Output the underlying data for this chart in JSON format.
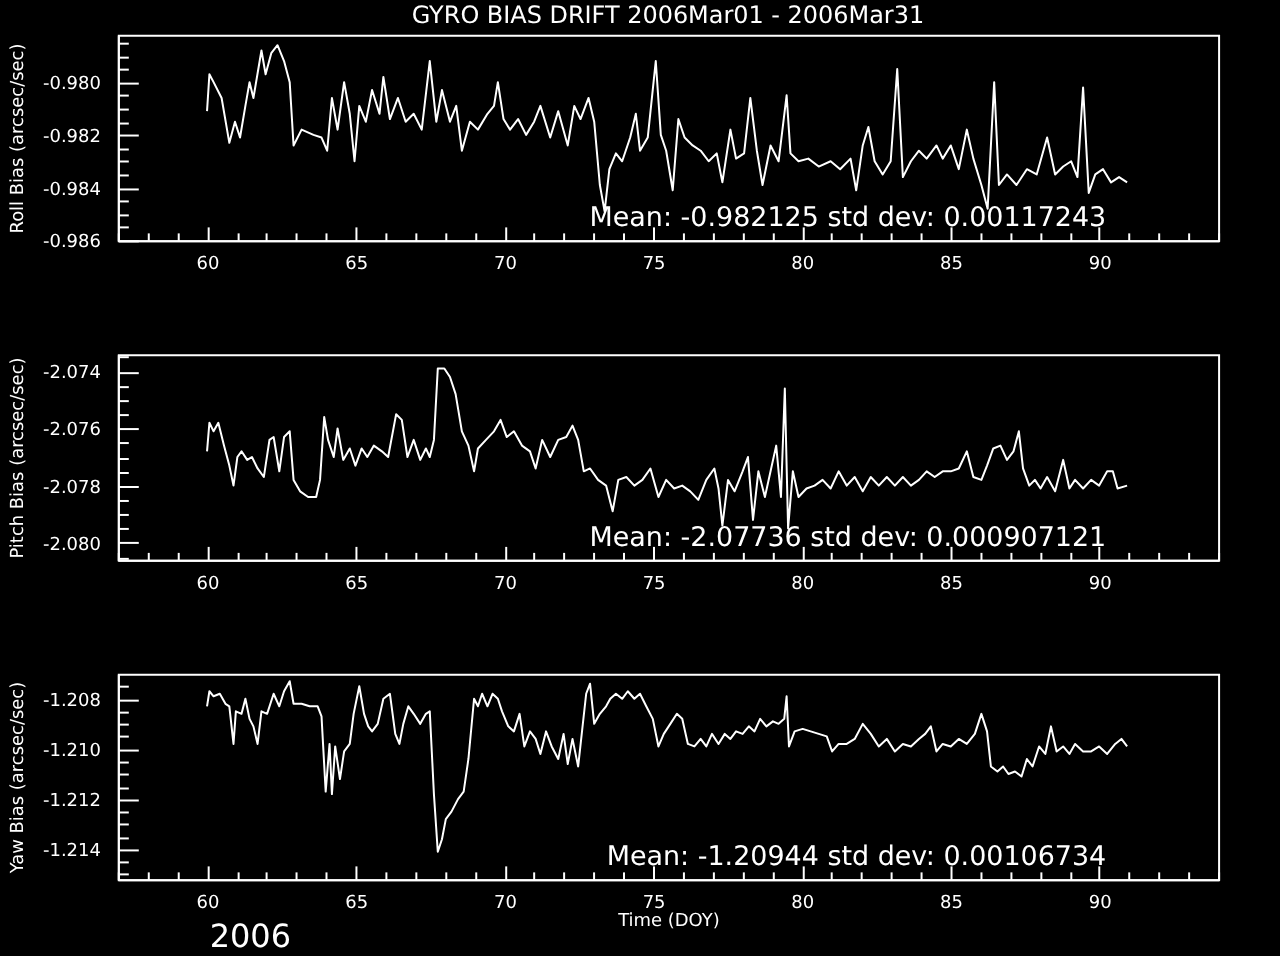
{
  "chart_data": [
    {
      "type": "line",
      "title": "GYRO BIAS DRIFT 2006Mar01 - 2006Mar31",
      "ylabel": "Roll Bias (arcsec/sec)",
      "annotations": [
        "Mean: -0.982125 std dev: 0.00117243"
      ],
      "xlim": [
        57,
        94
      ],
      "ylim": [
        -0.986,
        -0.9782
      ],
      "xticks": [
        {
          "value": 57,
          "label": null
        },
        {
          "value": 58,
          "label": null
        },
        {
          "value": 59,
          "label": null
        },
        60,
        {
          "value": 61,
          "label": null
        },
        {
          "value": 62,
          "label": null
        },
        {
          "value": 63,
          "label": null
        },
        {
          "value": 64,
          "label": null
        },
        65,
        {
          "value": 66,
          "label": null
        },
        {
          "value": 67,
          "label": null
        },
        {
          "value": 68,
          "label": null
        },
        {
          "value": 69,
          "label": null
        },
        70,
        {
          "value": 71,
          "label": null
        },
        {
          "value": 72,
          "label": null
        },
        {
          "value": 73,
          "label": null
        },
        {
          "value": 74,
          "label": null
        },
        75,
        {
          "value": 76,
          "label": null
        },
        {
          "value": 77,
          "label": null
        },
        {
          "value": 78,
          "label": null
        },
        {
          "value": 79,
          "label": null
        },
        80,
        {
          "value": 81,
          "label": null
        },
        {
          "value": 82,
          "label": null
        },
        {
          "value": 83,
          "label": null
        },
        {
          "value": 84,
          "label": null
        },
        85,
        {
          "value": 86,
          "label": null
        },
        {
          "value": 87,
          "label": null
        },
        {
          "value": 88,
          "label": null
        },
        {
          "value": 89,
          "label": null
        },
        90,
        {
          "value": 91,
          "label": null
        },
        {
          "value": 92,
          "label": null
        },
        {
          "value": 93,
          "label": null
        },
        {
          "value": 94,
          "label": null
        }
      ],
      "yticks": [
        {
          "value": -0.986,
          "label": "-0.986"
        },
        {
          "value": -0.9855,
          "label": null
        },
        {
          "value": -0.985,
          "label": null
        },
        {
          "value": -0.9845,
          "label": null
        },
        {
          "value": -0.984,
          "label": "-0.984"
        },
        {
          "value": -0.9835,
          "label": null
        },
        {
          "value": -0.983,
          "label": null
        },
        {
          "value": -0.9825,
          "label": null
        },
        {
          "value": -0.982,
          "label": "-0.982"
        },
        {
          "value": -0.9815,
          "label": null
        },
        {
          "value": -0.981,
          "label": null
        },
        {
          "value": -0.9805,
          "label": null
        },
        {
          "value": -0.98,
          "label": "-0.980"
        },
        {
          "value": -0.9795,
          "label": null
        },
        {
          "value": -0.979,
          "label": null
        },
        {
          "value": -0.9785,
          "label": null
        }
      ],
      "series": [
        {
          "color": "#ffffff",
          "x": [
            60.0,
            60.08,
            60.22,
            60.49,
            60.75,
            60.94,
            61.11,
            61.29,
            61.43,
            61.56,
            61.83,
            61.97,
            62.16,
            62.37,
            62.59,
            62.78,
            62.91,
            63.18,
            63.58,
            63.85,
            64.04,
            64.2,
            64.39,
            64.61,
            64.8,
            64.96,
            65.12,
            65.34,
            65.55,
            65.8,
            65.93,
            66.15,
            66.42,
            66.68,
            66.95,
            67.22,
            67.49,
            67.71,
            67.9,
            68.17,
            68.38,
            68.57,
            68.84,
            69.11,
            69.43,
            69.65,
            69.78,
            69.97,
            70.19,
            70.46,
            70.73,
            71.0,
            71.21,
            71.54,
            71.81,
            72.13,
            72.35,
            72.56,
            72.83,
            73.02,
            73.21,
            73.37,
            73.53,
            73.75,
            73.96,
            74.23,
            74.42,
            74.56,
            74.82,
            75.09,
            75.26,
            75.44,
            75.66,
            75.85,
            76.06,
            76.33,
            76.6,
            76.87,
            77.14,
            77.33,
            77.6,
            77.79,
            78.06,
            78.27,
            78.49,
            78.68,
            78.95,
            79.22,
            79.49,
            79.62,
            79.89,
            80.22,
            80.57,
            80.97,
            81.29,
            81.64,
            81.83,
            82.05,
            82.24,
            82.45,
            82.72,
            82.99,
            83.21,
            83.4,
            83.67,
            83.94,
            84.2,
            84.53,
            84.74,
            85.01,
            85.28,
            85.55,
            85.77,
            86.04,
            86.25,
            86.47,
            86.63,
            86.9,
            87.22,
            87.57,
            87.9,
            88.25,
            88.52,
            88.79,
            89.06,
            89.27,
            89.46,
            89.65,
            89.87,
            90.13,
            90.4,
            90.67,
            90.94
          ],
          "values": [
            -0.9811,
            -0.9797,
            -0.98,
            -0.9806,
            -0.9823,
            -0.9815,
            -0.9821,
            -0.9809,
            -0.98,
            -0.9806,
            -0.9788,
            -0.9797,
            -0.9789,
            -0.9786,
            -0.9792,
            -0.98,
            -0.9824,
            -0.9818,
            -0.982,
            -0.9821,
            -0.9826,
            -0.9806,
            -0.9818,
            -0.98,
            -0.9812,
            -0.983,
            -0.9809,
            -0.9815,
            -0.9803,
            -0.9812,
            -0.9798,
            -0.9814,
            -0.9806,
            -0.9815,
            -0.9812,
            -0.9818,
            -0.9792,
            -0.9815,
            -0.9803,
            -0.9815,
            -0.9809,
            -0.9826,
            -0.9815,
            -0.9818,
            -0.9812,
            -0.9809,
            -0.98,
            -0.9814,
            -0.9818,
            -0.9814,
            -0.982,
            -0.9815,
            -0.9809,
            -0.9821,
            -0.9811,
            -0.9824,
            -0.9809,
            -0.9814,
            -0.9806,
            -0.9815,
            -0.9839,
            -0.9849,
            -0.9833,
            -0.9827,
            -0.983,
            -0.9821,
            -0.9812,
            -0.9826,
            -0.9821,
            -0.9792,
            -0.982,
            -0.9826,
            -0.9841,
            -0.9814,
            -0.9821,
            -0.9824,
            -0.9826,
            -0.983,
            -0.9827,
            -0.9838,
            -0.9818,
            -0.9829,
            -0.9827,
            -0.9806,
            -0.9826,
            -0.9839,
            -0.9824,
            -0.983,
            -0.9805,
            -0.9827,
            -0.983,
            -0.9829,
            -0.9832,
            -0.983,
            -0.9833,
            -0.9829,
            -0.9841,
            -0.9824,
            -0.9817,
            -0.983,
            -0.9835,
            -0.983,
            -0.9795,
            -0.9836,
            -0.983,
            -0.9826,
            -0.9829,
            -0.9824,
            -0.9829,
            -0.9824,
            -0.9833,
            -0.9818,
            -0.9829,
            -0.9839,
            -0.9848,
            -0.98,
            -0.9839,
            -0.9835,
            -0.9839,
            -0.9833,
            -0.9835,
            -0.9821,
            -0.9835,
            -0.9832,
            -0.983,
            -0.9836,
            -0.9802,
            -0.9842,
            -0.9835,
            -0.9833,
            -0.9838,
            -0.9836,
            -0.9838
          ]
        }
      ]
    },
    {
      "type": "line",
      "ylabel": "Pitch Bias (arcsec/sec)",
      "annotations": [
        "Mean: -2.07736 std dev: 0.000907121"
      ],
      "xlim": [
        57,
        94
      ],
      "ylim": [
        -2.0806,
        -2.0734
      ],
      "xticks": [
        {
          "value": 57,
          "label": null
        },
        {
          "value": 58,
          "label": null
        },
        {
          "value": 59,
          "label": null
        },
        60,
        {
          "value": 61,
          "label": null
        },
        {
          "value": 62,
          "label": null
        },
        {
          "value": 63,
          "label": null
        },
        {
          "value": 64,
          "label": null
        },
        65,
        {
          "value": 66,
          "label": null
        },
        {
          "value": 67,
          "label": null
        },
        {
          "value": 68,
          "label": null
        },
        {
          "value": 69,
          "label": null
        },
        70,
        {
          "value": 71,
          "label": null
        },
        {
          "value": 72,
          "label": null
        },
        {
          "value": 73,
          "label": null
        },
        {
          "value": 74,
          "label": null
        },
        75,
        {
          "value": 76,
          "label": null
        },
        {
          "value": 77,
          "label": null
        },
        {
          "value": 78,
          "label": null
        },
        {
          "value": 79,
          "label": null
        },
        80,
        {
          "value": 81,
          "label": null
        },
        {
          "value": 82,
          "label": null
        },
        {
          "value": 83,
          "label": null
        },
        {
          "value": 84,
          "label": null
        },
        85,
        {
          "value": 86,
          "label": null
        },
        {
          "value": 87,
          "label": null
        },
        {
          "value": 88,
          "label": null
        },
        {
          "value": 89,
          "label": null
        },
        90,
        {
          "value": 91,
          "label": null
        },
        {
          "value": 92,
          "label": null
        },
        {
          "value": 93,
          "label": null
        },
        {
          "value": 94,
          "label": null
        }
      ],
      "yticks": [
        {
          "value": -2.0805,
          "label": null
        },
        {
          "value": -2.08,
          "label": "-2.080"
        },
        {
          "value": -2.0795,
          "label": null
        },
        {
          "value": -2.079,
          "label": null
        },
        {
          "value": -2.0785,
          "label": null
        },
        {
          "value": -2.078,
          "label": "-2.078"
        },
        {
          "value": -2.0775,
          "label": null
        },
        {
          "value": -2.077,
          "label": null
        },
        {
          "value": -2.0765,
          "label": null
        },
        {
          "value": -2.076,
          "label": "-2.076"
        },
        {
          "value": -2.0755,
          "label": null
        },
        {
          "value": -2.075,
          "label": null
        },
        {
          "value": -2.0745,
          "label": null
        },
        {
          "value": -2.074,
          "label": "-2.074"
        },
        {
          "value": -2.0735,
          "label": null
        }
      ],
      "series": [
        {
          "color": "#ffffff",
          "x": [
            60.0,
            60.08,
            60.22,
            60.38,
            60.57,
            60.75,
            60.89,
            61.02,
            61.16,
            61.35,
            61.51,
            61.7,
            61.91,
            62.1,
            62.24,
            62.43,
            62.59,
            62.78,
            62.91,
            63.13,
            63.4,
            63.67,
            63.8,
            63.94,
            64.07,
            64.26,
            64.39,
            64.58,
            64.8,
            64.99,
            65.2,
            65.39,
            65.61,
            65.88,
            66.09,
            66.36,
            66.55,
            66.74,
            66.95,
            67.17,
            67.36,
            67.49,
            67.63,
            67.76,
            67.98,
            68.17,
            68.36,
            68.57,
            68.79,
            68.98,
            69.11,
            69.38,
            69.65,
            69.87,
            70.08,
            70.32,
            70.59,
            70.86,
            71.05,
            71.27,
            71.54,
            71.81,
            72.08,
            72.29,
            72.48,
            72.67,
            72.88,
            73.15,
            73.42,
            73.64,
            73.83,
            74.1,
            74.37,
            74.64,
            74.91,
            75.18,
            75.44,
            75.71,
            75.98,
            76.25,
            76.52,
            76.79,
            77.06,
            77.2,
            77.33,
            77.52,
            77.74,
            78.01,
            78.19,
            78.36,
            78.54,
            78.76,
            78.95,
            79.14,
            79.3,
            79.43,
            79.54,
            79.7,
            79.89,
            80.16,
            80.43,
            80.7,
            80.97,
            81.24,
            81.51,
            81.78,
            82.05,
            82.32,
            82.59,
            82.86,
            83.13,
            83.4,
            83.67,
            83.94,
            84.2,
            84.47,
            84.74,
            85.01,
            85.28,
            85.55,
            85.77,
            86.04,
            86.23,
            86.44,
            86.68,
            86.9,
            87.12,
            87.3,
            87.44,
            87.65,
            87.84,
            88.03,
            88.25,
            88.52,
            88.79,
            89.0,
            89.19,
            89.46,
            89.73,
            90.0,
            90.27,
            90.46,
            90.62,
            90.94
          ],
          "values": [
            -2.0768,
            -2.0758,
            -2.0761,
            -2.0758,
            -2.0766,
            -2.0773,
            -2.078,
            -2.077,
            -2.0768,
            -2.0771,
            -2.077,
            -2.0774,
            -2.0777,
            -2.0764,
            -2.0763,
            -2.0775,
            -2.0763,
            -2.0761,
            -2.0778,
            -2.0782,
            -2.0784,
            -2.0784,
            -2.0778,
            -2.0756,
            -2.0764,
            -2.077,
            -2.076,
            -2.0771,
            -2.0767,
            -2.0773,
            -2.0767,
            -2.077,
            -2.0766,
            -2.0768,
            -2.077,
            -2.0755,
            -2.0757,
            -2.077,
            -2.0764,
            -2.0771,
            -2.0767,
            -2.077,
            -2.0764,
            -2.0739,
            -2.0739,
            -2.0742,
            -2.0748,
            -2.0761,
            -2.0766,
            -2.0775,
            -2.0767,
            -2.0764,
            -2.0761,
            -2.0757,
            -2.0763,
            -2.0761,
            -2.0766,
            -2.0768,
            -2.0774,
            -2.0764,
            -2.077,
            -2.0764,
            -2.0763,
            -2.0759,
            -2.0764,
            -2.0775,
            -2.0774,
            -2.0778,
            -2.078,
            -2.0789,
            -2.0778,
            -2.0777,
            -2.078,
            -2.0778,
            -2.0774,
            -2.0784,
            -2.0778,
            -2.0781,
            -2.078,
            -2.0782,
            -2.0785,
            -2.0778,
            -2.0774,
            -2.0781,
            -2.0794,
            -2.0778,
            -2.0782,
            -2.0775,
            -2.077,
            -2.0792,
            -2.0775,
            -2.0784,
            -2.0775,
            -2.0766,
            -2.0784,
            -2.0746,
            -2.0795,
            -2.0775,
            -2.0784,
            -2.0781,
            -2.078,
            -2.0778,
            -2.0781,
            -2.0775,
            -2.078,
            -2.0777,
            -2.0782,
            -2.0777,
            -2.078,
            -2.0777,
            -2.078,
            -2.0777,
            -2.078,
            -2.0778,
            -2.0775,
            -2.0777,
            -2.0775,
            -2.0775,
            -2.0774,
            -2.0768,
            -2.0777,
            -2.0778,
            -2.0773,
            -2.0767,
            -2.0766,
            -2.0771,
            -2.0768,
            -2.0761,
            -2.0774,
            -2.078,
            -2.0778,
            -2.0781,
            -2.0777,
            -2.0782,
            -2.0771,
            -2.0781,
            -2.0778,
            -2.0781,
            -2.0778,
            -2.078,
            -2.0775,
            -2.0775,
            -2.0781,
            -2.078
          ]
        }
      ]
    },
    {
      "type": "line",
      "xlabel": "Time (DOY)",
      "ylabel": "Yaw Bias (arcsec/sec)",
      "annotations": [
        "Mean: -1.20944 std dev: 0.00106734",
        "2006"
      ],
      "xlim": [
        57,
        94
      ],
      "ylim": [
        -1.2152,
        -1.207
      ],
      "xticks": [
        {
          "value": 57,
          "label": null
        },
        {
          "value": 58,
          "label": null
        },
        {
          "value": 59,
          "label": null
        },
        60,
        {
          "value": 61,
          "label": null
        },
        {
          "value": 62,
          "label": null
        },
        {
          "value": 63,
          "label": null
        },
        {
          "value": 64,
          "label": null
        },
        65,
        {
          "value": 66,
          "label": null
        },
        {
          "value": 67,
          "label": null
        },
        {
          "value": 68,
          "label": null
        },
        {
          "value": 69,
          "label": null
        },
        70,
        {
          "value": 71,
          "label": null
        },
        {
          "value": 72,
          "label": null
        },
        {
          "value": 73,
          "label": null
        },
        {
          "value": 74,
          "label": null
        },
        75,
        {
          "value": 76,
          "label": null
        },
        {
          "value": 77,
          "label": null
        },
        {
          "value": 78,
          "label": null
        },
        {
          "value": 79,
          "label": null
        },
        80,
        {
          "value": 81,
          "label": null
        },
        {
          "value": 82,
          "label": null
        },
        {
          "value": 83,
          "label": null
        },
        {
          "value": 84,
          "label": null
        },
        85,
        {
          "value": 86,
          "label": null
        },
        {
          "value": 87,
          "label": null
        },
        {
          "value": 88,
          "label": null
        },
        {
          "value": 89,
          "label": null
        },
        90,
        {
          "value": 91,
          "label": null
        },
        {
          "value": 92,
          "label": null
        },
        {
          "value": 93,
          "label": null
        },
        {
          "value": 94,
          "label": null
        }
      ],
      "yticks": [
        {
          "value": -1.215,
          "label": null
        },
        {
          "value": -1.2145,
          "label": null
        },
        {
          "value": -1.214,
          "label": "-1.214"
        },
        {
          "value": -1.2135,
          "label": null
        },
        {
          "value": -1.213,
          "label": null
        },
        {
          "value": -1.2125,
          "label": null
        },
        {
          "value": -1.212,
          "label": "-1.212"
        },
        {
          "value": -1.2115,
          "label": null
        },
        {
          "value": -1.211,
          "label": null
        },
        {
          "value": -1.2105,
          "label": null
        },
        {
          "value": -1.21,
          "label": "-1.210"
        },
        {
          "value": -1.2095,
          "label": null
        },
        {
          "value": -1.209,
          "label": null
        },
        {
          "value": -1.2085,
          "label": null
        },
        {
          "value": -1.208,
          "label": "-1.208"
        },
        {
          "value": -1.2075,
          "label": null
        }
      ],
      "series": [
        {
          "color": "#ffffff",
          "x": [
            60.0,
            60.08,
            60.22,
            60.43,
            60.62,
            60.75,
            60.89,
            60.97,
            61.16,
            61.29,
            61.43,
            61.56,
            61.7,
            61.83,
            62.02,
            62.24,
            62.43,
            62.59,
            62.78,
            62.91,
            63.18,
            63.45,
            63.72,
            63.85,
            63.99,
            64.12,
            64.2,
            64.31,
            64.47,
            64.61,
            64.8,
            64.93,
            65.12,
            65.28,
            65.42,
            65.55,
            65.74,
            65.93,
            66.15,
            66.33,
            66.47,
            66.6,
            66.77,
            66.95,
            67.17,
            67.36,
            67.49,
            67.63,
            67.76,
            67.9,
            68.03,
            68.22,
            68.44,
            68.63,
            68.79,
            68.98,
            69.11,
            69.25,
            69.43,
            69.6,
            69.78,
            69.92,
            70.13,
            70.32,
            70.51,
            70.67,
            70.86,
            71.05,
            71.21,
            71.4,
            71.59,
            71.81,
            71.99,
            72.13,
            72.29,
            72.48,
            72.61,
            72.75,
            72.88,
            73.02,
            73.21,
            73.42,
            73.56,
            73.75,
            73.96,
            74.15,
            74.37,
            74.56,
            74.77,
            74.99,
            75.18,
            75.36,
            75.58,
            75.8,
            75.98,
            76.17,
            76.39,
            76.6,
            76.79,
            76.98,
            77.2,
            77.41,
            77.6,
            77.79,
            78.01,
            78.22,
            78.41,
            78.6,
            78.81,
            79.03,
            79.22,
            79.41,
            79.49,
            79.57,
            79.76,
            80.03,
            80.3,
            80.57,
            80.84,
            81.02,
            81.24,
            81.51,
            81.78,
            82.05,
            82.32,
            82.59,
            82.86,
            83.13,
            83.4,
            83.67,
            83.94,
            84.15,
            84.34,
            84.53,
            84.74,
            85.01,
            85.28,
            85.55,
            85.82,
            86.04,
            86.23,
            86.36,
            86.58,
            86.77,
            86.95,
            87.17,
            87.39,
            87.57,
            87.76,
            87.98,
            88.19,
            88.38,
            88.57,
            88.79,
            89.0,
            89.19,
            89.46,
            89.73,
            90.0,
            90.27,
            90.54,
            90.75,
            90.94
          ],
          "values": [
            -1.2083,
            -1.2077,
            -1.2079,
            -1.2078,
            -1.2082,
            -1.2083,
            -1.2098,
            -1.2085,
            -1.2086,
            -1.208,
            -1.2088,
            -1.2091,
            -1.2098,
            -1.2085,
            -1.2086,
            -1.2078,
            -1.2083,
            -1.2077,
            -1.2073,
            -1.2082,
            -1.2082,
            -1.2083,
            -1.2083,
            -1.2087,
            -1.2117,
            -1.2098,
            -1.2118,
            -1.2099,
            -1.2112,
            -1.2101,
            -1.2098,
            -1.2086,
            -1.2075,
            -1.2086,
            -1.2091,
            -1.2093,
            -1.209,
            -1.208,
            -1.2078,
            -1.2094,
            -1.2098,
            -1.209,
            -1.2083,
            -1.2086,
            -1.209,
            -1.2086,
            -1.2085,
            -1.2118,
            -1.2141,
            -1.2136,
            -1.2128,
            -1.2125,
            -1.212,
            -1.2117,
            -1.2104,
            -1.208,
            -1.2083,
            -1.2078,
            -1.2083,
            -1.2078,
            -1.208,
            -1.2085,
            -1.2091,
            -1.2093,
            -1.2086,
            -1.2099,
            -1.2093,
            -1.2096,
            -1.2102,
            -1.2093,
            -1.2099,
            -1.2104,
            -1.2094,
            -1.2106,
            -1.2096,
            -1.2107,
            -1.2093,
            -1.2078,
            -1.2074,
            -1.209,
            -1.2086,
            -1.2083,
            -1.208,
            -1.2078,
            -1.208,
            -1.2077,
            -1.208,
            -1.2078,
            -1.2083,
            -1.2088,
            -1.2099,
            -1.2094,
            -1.209,
            -1.2086,
            -1.2088,
            -1.2098,
            -1.2099,
            -1.2096,
            -1.2099,
            -1.2094,
            -1.2098,
            -1.2094,
            -1.2096,
            -1.2093,
            -1.2094,
            -1.2091,
            -1.2093,
            -1.2088,
            -1.2091,
            -1.2089,
            -1.209,
            -1.2088,
            -1.2079,
            -1.2099,
            -1.2093,
            -1.2092,
            -1.2093,
            -1.2094,
            -1.2095,
            -1.2101,
            -1.2098,
            -1.2098,
            -1.2096,
            -1.209,
            -1.2094,
            -1.2099,
            -1.2096,
            -1.2101,
            -1.2098,
            -1.2099,
            -1.2096,
            -1.2094,
            -1.2091,
            -1.2101,
            -1.2098,
            -1.2099,
            -1.2096,
            -1.2098,
            -1.2094,
            -1.2086,
            -1.2093,
            -1.2107,
            -1.2109,
            -1.2107,
            -1.211,
            -1.2109,
            -1.2111,
            -1.2104,
            -1.2107,
            -1.2099,
            -1.2102,
            -1.2091,
            -1.2101,
            -1.2099,
            -1.2102,
            -1.2098,
            -1.2101,
            -1.2101,
            -1.2099,
            -1.2102,
            -1.2098,
            -1.2096,
            -1.2099
          ]
        }
      ]
    }
  ]
}
